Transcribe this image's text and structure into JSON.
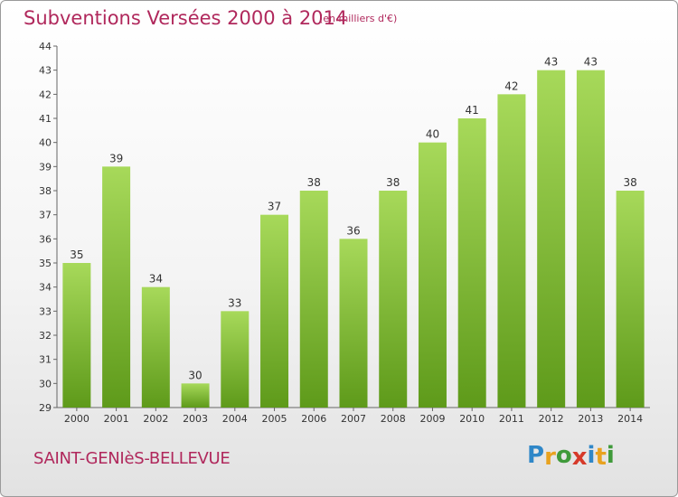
{
  "title": "Subventions Versées 2000 à 2014",
  "unit_note": "(en milliers d'€)",
  "commune": "SAINT-GENIèS-BELLEVUE",
  "logo": {
    "letters": [
      "P",
      "r",
      "o",
      "x",
      "i",
      "t",
      "i"
    ],
    "colors": [
      "#2f87c8",
      "#e8a21f",
      "#3f9a3a",
      "#d63a2a",
      "#2f87c8",
      "#e8a21f",
      "#3f9a3a"
    ]
  },
  "colors": {
    "bar_light": "#a7d95a",
    "bar_dark": "#5e9a1a",
    "title": "#b0285c"
  },
  "chart_data": {
    "type": "bar",
    "categories": [
      "2000",
      "2001",
      "2002",
      "2003",
      "2004",
      "2005",
      "2006",
      "2007",
      "2008",
      "2009",
      "2010",
      "2011",
      "2012",
      "2013",
      "2014"
    ],
    "values": [
      35,
      39,
      34,
      30,
      33,
      37,
      38,
      36,
      38,
      40,
      41,
      42,
      43,
      43,
      38
    ],
    "ylim": [
      29,
      44
    ],
    "yticks": [
      "29",
      "30",
      "31",
      "32",
      "33",
      "34",
      "35",
      "36",
      "37",
      "38",
      "39",
      "40",
      "41",
      "42",
      "43",
      "44"
    ],
    "grid": false,
    "legend": "none"
  }
}
